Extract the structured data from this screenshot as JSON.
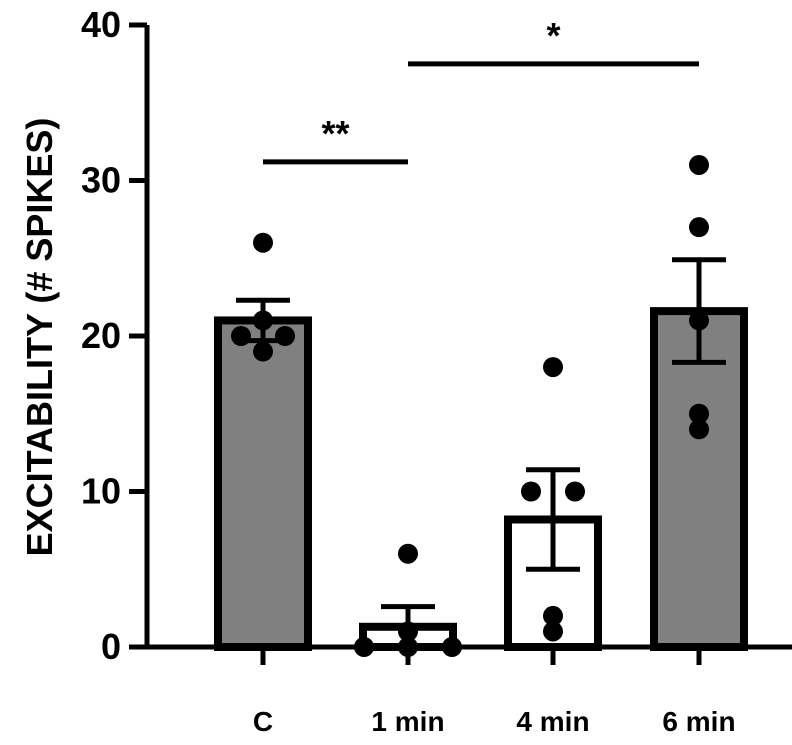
{
  "chart_data": {
    "type": "bar",
    "title": "",
    "xlabel": "",
    "ylabel": "EXCITABILITY (# SPIKES)",
    "ylim": [
      0,
      40
    ],
    "yticks": [
      0,
      10,
      20,
      30,
      40
    ],
    "categories": [
      "C",
      "1 min",
      "4 min",
      "6 min"
    ],
    "values": [
      21.0,
      1.3,
      8.2,
      21.6
    ],
    "error": [
      1.3,
      1.3,
      3.2,
      3.3
    ],
    "fills": [
      "#808080",
      "#ffffff",
      "#ffffff",
      "#808080"
    ],
    "points": [
      [
        26,
        21,
        20,
        20,
        19
      ],
      [
        6,
        1,
        0,
        0,
        0
      ],
      [
        18,
        10,
        10,
        2,
        1
      ],
      [
        31,
        27,
        21,
        15,
        14
      ]
    ],
    "significance": [
      {
        "label": "**",
        "from": "C",
        "to": "1 min",
        "y": 31.2
      },
      {
        "label": "*",
        "from": "1 min",
        "to": "6 min",
        "y": 37.5
      }
    ],
    "grid": false,
    "legend": "none"
  }
}
